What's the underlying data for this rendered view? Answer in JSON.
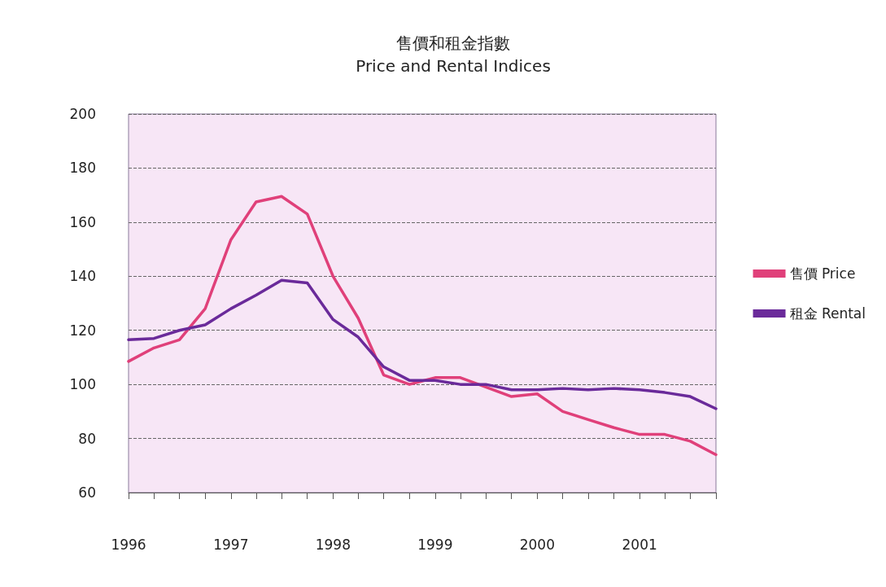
{
  "chart_data": {
    "type": "line",
    "title": "售價和租金指數",
    "subtitle": "Price and Rental Indices",
    "x": [
      "1996-01",
      "1996-04",
      "1996-07",
      "1996-10",
      "1997-01",
      "1997-04",
      "1997-07",
      "1997-10",
      "1998-01",
      "1998-04",
      "1998-07",
      "1998-10",
      "1999-01",
      "1999-04",
      "1999-07",
      "1999-10",
      "2000-01",
      "2000-04",
      "2000-07",
      "2000-10",
      "2001-01",
      "2001-04",
      "2001-07",
      "2001-10"
    ],
    "series": [
      {
        "name": "售價 Price",
        "color": "#e0407a",
        "values": [
          108.5,
          113.5,
          116.5,
          128,
          153.5,
          167.5,
          169.5,
          163,
          140,
          124.5,
          103.5,
          100,
          102.5,
          102.5,
          99,
          95.5,
          96.5,
          90,
          87,
          84,
          81.5,
          81.5,
          79,
          74
        ]
      },
      {
        "name": "租金 Rental",
        "color": "#6a2a9a",
        "values": [
          116.5,
          117,
          120,
          122,
          128,
          133,
          138.5,
          137.5,
          124,
          117.5,
          106.5,
          101.5,
          101.5,
          100,
          100,
          98,
          98,
          98.5,
          98,
          98.5,
          98,
          97,
          95.5,
          91
        ]
      }
    ],
    "xlim": [
      "1996-01",
      "2001-10"
    ],
    "xticks": [
      {
        "value": "1996-01",
        "label": "1996"
      },
      {
        "value": "1996-04",
        "label": null
      },
      {
        "value": "1996-07",
        "label": null
      },
      {
        "value": "1996-10",
        "label": null
      },
      {
        "value": "1997-01",
        "label": "1997"
      },
      {
        "value": "1997-04",
        "label": null
      },
      {
        "value": "1997-07",
        "label": null
      },
      {
        "value": "1997-10",
        "label": null
      },
      {
        "value": "1998-01",
        "label": "1998"
      },
      {
        "value": "1998-04",
        "label": null
      },
      {
        "value": "1998-07",
        "label": null
      },
      {
        "value": "1998-10",
        "label": null
      },
      {
        "value": "1999-01",
        "label": "1999"
      },
      {
        "value": "1999-04",
        "label": null
      },
      {
        "value": "1999-07",
        "label": null
      },
      {
        "value": "1999-10",
        "label": null
      },
      {
        "value": "2000-01",
        "label": "2000"
      },
      {
        "value": "2000-04",
        "label": null
      },
      {
        "value": "2000-07",
        "label": null
      },
      {
        "value": "2000-10",
        "label": null
      },
      {
        "value": "2001-01",
        "label": "2001"
      },
      {
        "value": "2001-04",
        "label": null
      },
      {
        "value": "2001-07",
        "label": null
      },
      {
        "value": "2001-10",
        "label": null
      }
    ],
    "ylim": [
      60,
      200
    ],
    "yticks": [
      60,
      80,
      100,
      120,
      140,
      160,
      180,
      200
    ],
    "grid": "y",
    "legend": "right",
    "marker": "none",
    "line_style": "solid"
  }
}
